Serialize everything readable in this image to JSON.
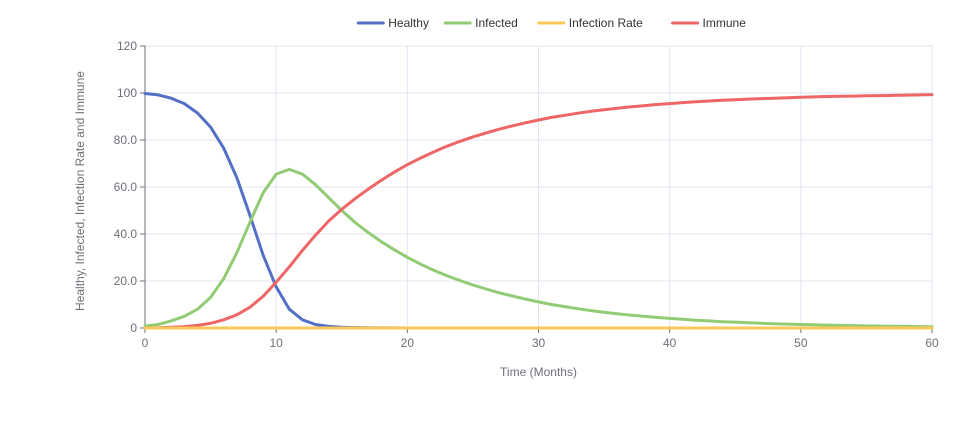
{
  "chart_data": {
    "type": "line",
    "title": "",
    "xlabel": "Time (Months)",
    "ylabel": "Healthy, Infected, Infection Rate and Immune",
    "xlim": [
      0,
      60
    ],
    "ylim": [
      0,
      120
    ],
    "x_ticks": [
      "0",
      "10",
      "20",
      "30",
      "40",
      "50",
      "60"
    ],
    "y_ticks": [
      "0",
      "20.0",
      "40.0",
      "60.0",
      "80.0",
      "100",
      "120"
    ],
    "grid": true,
    "legend_position": "top-center",
    "x": [
      0,
      1,
      2,
      3,
      4,
      5,
      6,
      7,
      8,
      9,
      10,
      11,
      12,
      13,
      14,
      15,
      16,
      17,
      18,
      19,
      20,
      21,
      22,
      23,
      24,
      25,
      26,
      27,
      28,
      29,
      30,
      31,
      32,
      33,
      34,
      35,
      36,
      37,
      38,
      39,
      40,
      41,
      42,
      43,
      44,
      45,
      46,
      47,
      48,
      49,
      50,
      51,
      52,
      53,
      54,
      55,
      56,
      57,
      58,
      59,
      60
    ],
    "series": [
      {
        "name": "Healthy",
        "color": "#5470c6",
        "values": [
          99.8,
          99.2,
          97.8,
          95.5,
          91.5,
          85.5,
          76.5,
          64.0,
          48.0,
          31.0,
          17.5,
          8.0,
          3.5,
          1.5,
          0.7,
          0.3,
          0.15,
          0.08,
          0.05,
          0.03,
          0.02,
          0.01,
          0.01,
          0,
          0,
          0,
          0,
          0,
          0,
          0,
          0,
          0,
          0,
          0,
          0,
          0,
          0,
          0,
          0,
          0,
          0,
          0,
          0,
          0,
          0,
          0,
          0,
          0,
          0,
          0,
          0,
          0,
          0,
          0,
          0,
          0,
          0,
          0,
          0,
          0,
          0
        ]
      },
      {
        "name": "Infected",
        "color": "#91cc75",
        "values": [
          0.8,
          1.5,
          3.0,
          5.0,
          8.0,
          13.0,
          21.0,
          32.0,
          45.0,
          57.5,
          65.5,
          67.5,
          65.5,
          61.0,
          55.5,
          50.0,
          45.0,
          40.7,
          36.8,
          33.3,
          30.1,
          27.2,
          24.6,
          22.3,
          20.2,
          18.3,
          16.6,
          15.0,
          13.6,
          12.3,
          11.1,
          10.0,
          9.1,
          8.2,
          7.4,
          6.7,
          6.1,
          5.5,
          5.0,
          4.5,
          4.1,
          3.7,
          3.3,
          3.0,
          2.7,
          2.5,
          2.2,
          2.0,
          1.8,
          1.65,
          1.5,
          1.35,
          1.22,
          1.1,
          1.0,
          0.9,
          0.82,
          0.74,
          0.67,
          0.6,
          0.55
        ]
      },
      {
        "name": "Infection Rate",
        "color": "#fac858",
        "values": [
          0,
          0,
          0,
          0,
          0,
          0,
          0,
          0,
          0,
          0,
          0,
          0,
          0,
          0,
          0,
          0,
          0,
          0,
          0,
          0,
          0,
          0,
          0,
          0,
          0,
          0,
          0,
          0,
          0,
          0,
          0,
          0,
          0,
          0,
          0,
          0,
          0,
          0,
          0,
          0,
          0,
          0,
          0,
          0,
          0,
          0,
          0,
          0,
          0,
          0,
          0,
          0,
          0,
          0,
          0,
          0,
          0,
          0,
          0,
          0,
          0
        ]
      },
      {
        "name": "Immune",
        "color": "#ee6666",
        "values": [
          0,
          0.1,
          0.3,
          0.6,
          1.1,
          2.0,
          3.5,
          5.6,
          8.8,
          13.5,
          19.5,
          26.0,
          33.0,
          39.5,
          45.5,
          50.5,
          55.0,
          59.0,
          62.8,
          66.3,
          69.5,
          72.3,
          74.9,
          77.3,
          79.4,
          81.3,
          83.0,
          84.6,
          86.0,
          87.3,
          88.5,
          89.6,
          90.5,
          91.4,
          92.2,
          92.9,
          93.5,
          94.1,
          94.6,
          95.1,
          95.5,
          95.9,
          96.3,
          96.6,
          96.9,
          97.1,
          97.4,
          97.6,
          97.8,
          98.0,
          98.2,
          98.35,
          98.5,
          98.6,
          98.7,
          98.8,
          98.9,
          99.0,
          99.1,
          99.2,
          99.3
        ]
      }
    ]
  }
}
